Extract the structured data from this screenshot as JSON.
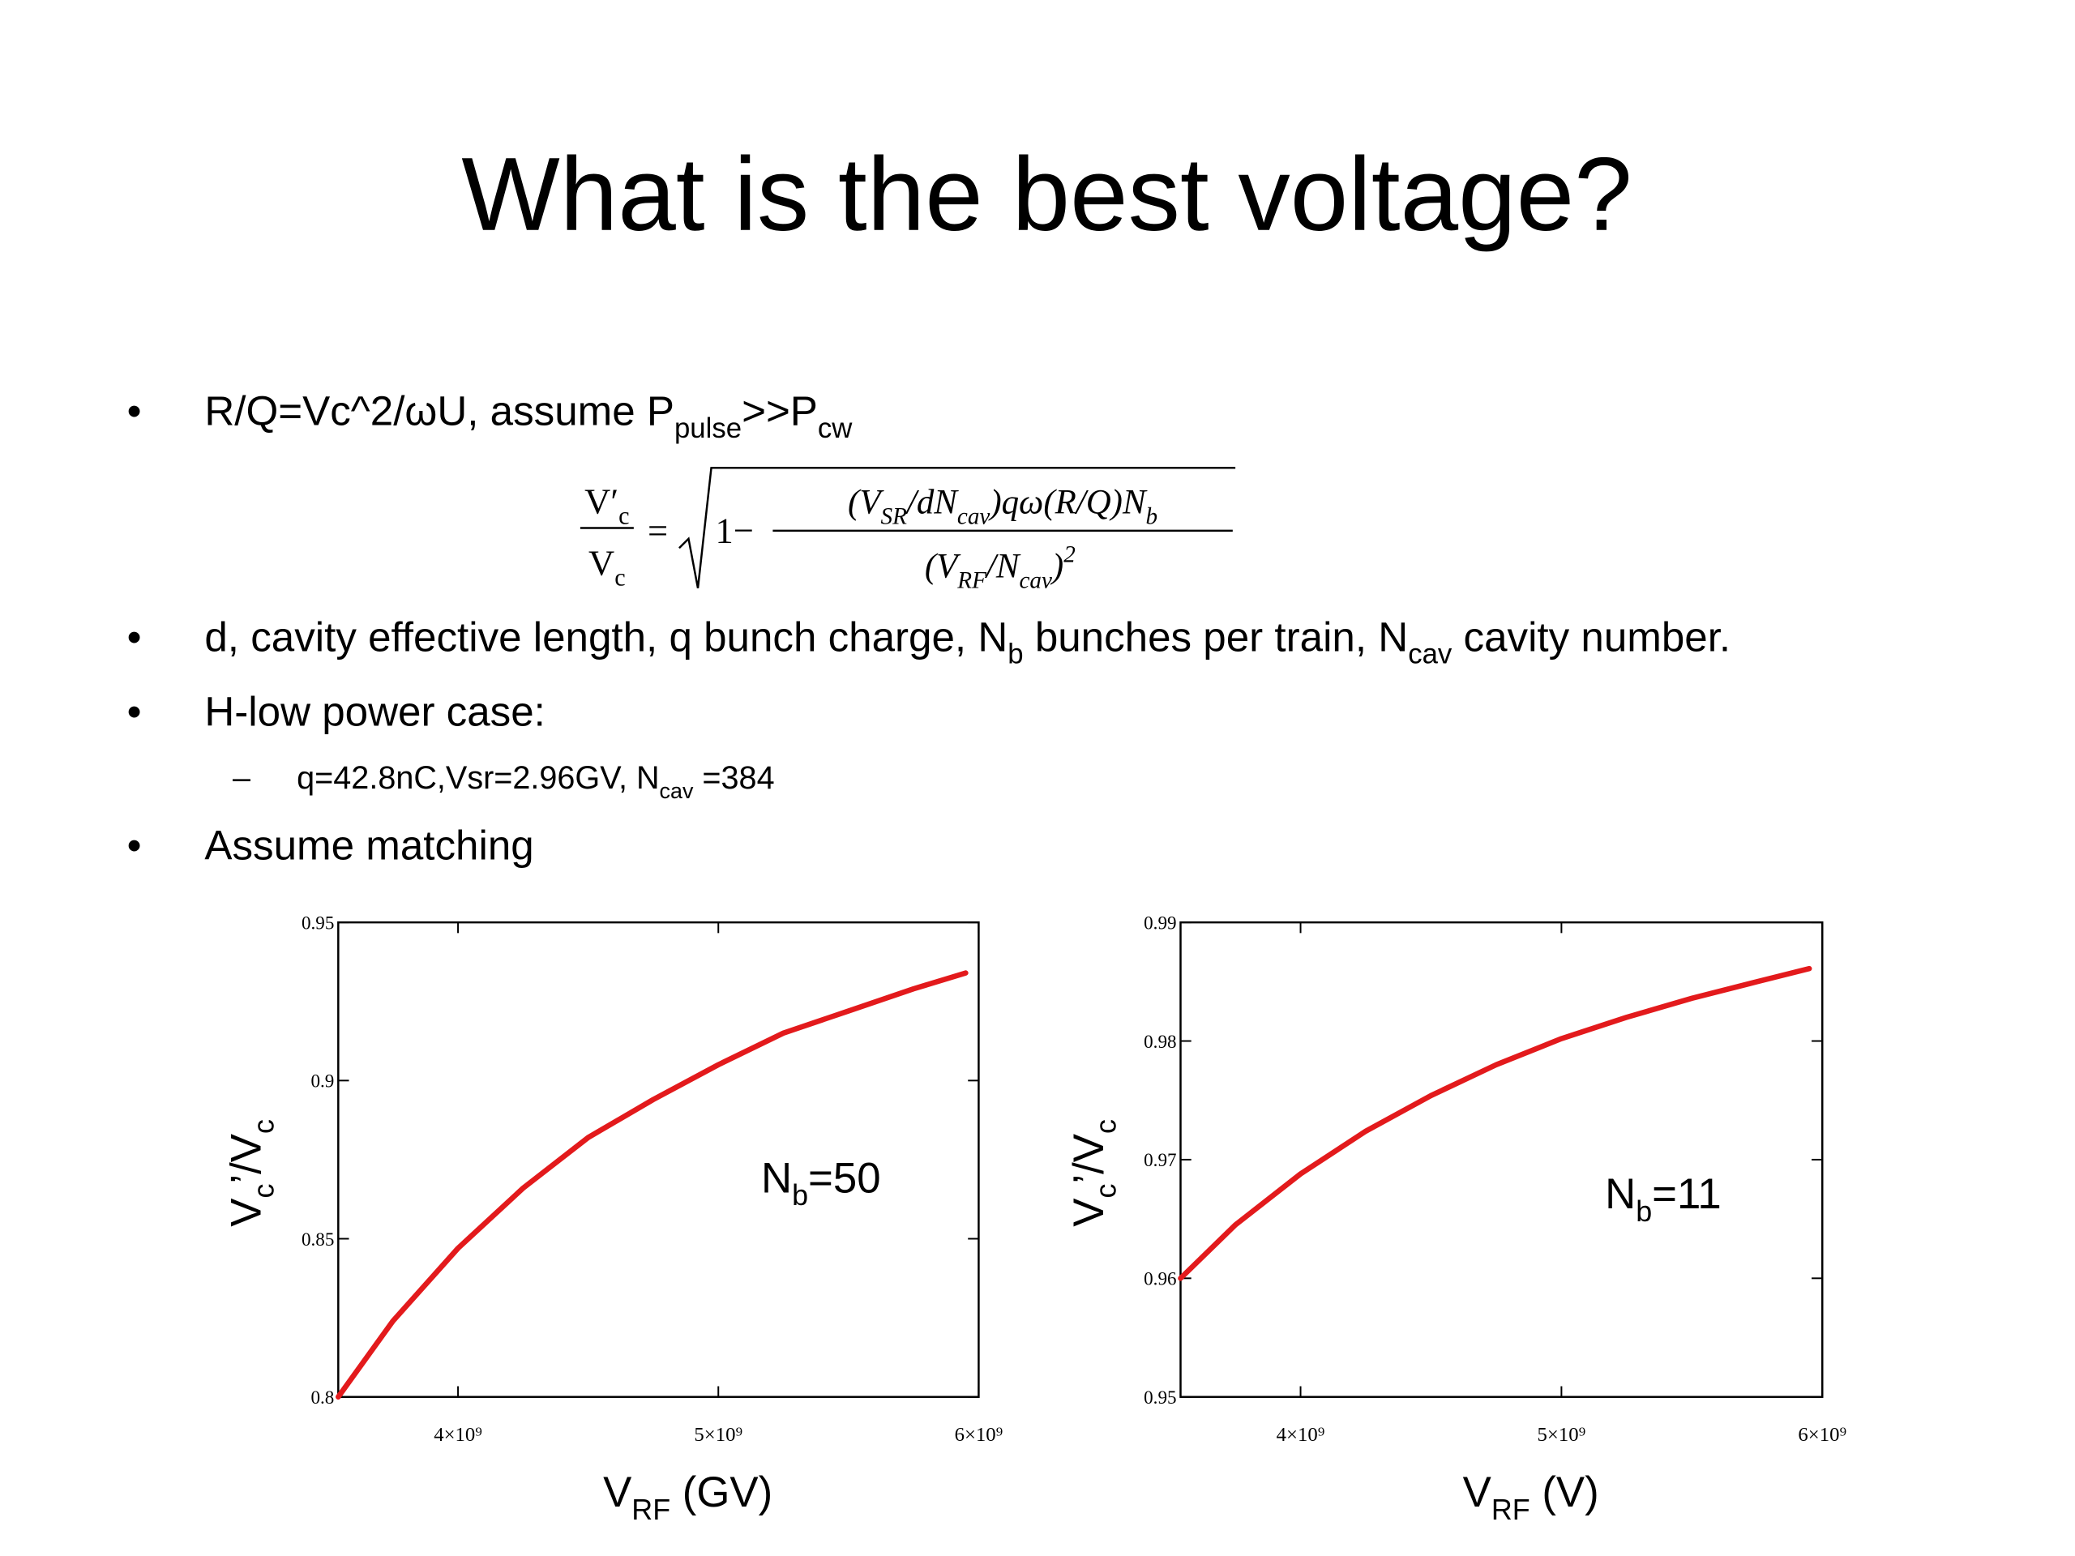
{
  "title": "What is the best voltage?",
  "items": [
    {
      "level": 1,
      "marker": "•",
      "text": [
        "R/Q=Vc^2/ωU, assume P",
        {
          "sub": "pulse"
        },
        ">>P",
        {
          "sub": "cw"
        }
      ]
    },
    {
      "level": 1,
      "marker": "•",
      "text": [
        "d, cavity effective length, q bunch charge, N",
        {
          "sub": "b"
        },
        " bunches per train, N",
        {
          "sub": "cav"
        },
        " cavity number."
      ]
    },
    {
      "level": 1,
      "marker": "•",
      "text": [
        "H-low power case:"
      ]
    },
    {
      "level": 2,
      "marker": "–",
      "text": [
        "q=42.8nC,Vsr=2.96GV, N",
        {
          "sub": "cav"
        },
        " =384"
      ]
    },
    {
      "level": 1,
      "marker": "•",
      "text": [
        "Assume matching"
      ]
    }
  ],
  "equation": {
    "lhs_numerator": [
      "V′",
      {
        "sub": "c"
      }
    ],
    "lhs_denominator": [
      "V",
      {
        "sub": "c"
      }
    ],
    "equals": "=",
    "one_minus": "1−",
    "numerator": [
      "(V",
      {
        "sub": "SR"
      },
      "/dN",
      {
        "sub": "cav"
      },
      ")qω(R/Q)N",
      {
        "sub": "b"
      }
    ],
    "denominator": [
      "(V",
      {
        "sub": "RF"
      },
      "/N",
      {
        "sub": "cav"
      },
      ")",
      {
        "sup": "2"
      }
    ]
  },
  "chart_data": [
    {
      "type": "line",
      "x_label": [
        "V",
        {
          "sub": "RF"
        },
        " (GV)"
      ],
      "y_label": [
        "V",
        {
          "sub": "c"
        },
        "’/V",
        {
          "sub": "c"
        }
      ],
      "annotation": [
        "N",
        {
          "sub": "b"
        },
        "=50"
      ],
      "x": [
        3540000000,
        3750000000,
        4000000000,
        4250000000,
        4500000000,
        4750000000,
        5000000000,
        5250000000,
        5500000000,
        5750000000,
        5950000000
      ],
      "values": [
        0.8,
        0.824,
        0.847,
        0.866,
        0.882,
        0.894,
        0.905,
        0.915,
        0.922,
        0.929,
        0.934
      ],
      "color": "#e31a1c",
      "xlim": [
        3540000000,
        6000000000
      ],
      "ylim": [
        0.8,
        0.95
      ],
      "xticks": [
        {
          "value": 4000000000,
          "label": "4×10⁹"
        },
        {
          "value": 5000000000,
          "label": "5×10⁹"
        },
        {
          "value": 6000000000,
          "label": "6×10⁹"
        }
      ],
      "yticks": [
        0.8,
        0.85,
        0.9,
        0.95
      ]
    },
    {
      "type": "line",
      "x_label": [
        "V",
        {
          "sub": "RF"
        },
        " (V)"
      ],
      "y_label": [
        "V",
        {
          "sub": "c"
        },
        "’/V",
        {
          "sub": "c"
        }
      ],
      "annotation": [
        "N",
        {
          "sub": "b"
        },
        "=11"
      ],
      "x": [
        3540000000,
        3750000000,
        4000000000,
        4250000000,
        4500000000,
        4750000000,
        5000000000,
        5250000000,
        5500000000,
        5750000000,
        5950000000
      ],
      "values": [
        0.96,
        0.9645,
        0.9688,
        0.9724,
        0.9754,
        0.978,
        0.9802,
        0.982,
        0.9836,
        0.985,
        0.9861
      ],
      "color": "#e31a1c",
      "xlim": [
        3540000000,
        6000000000
      ],
      "ylim": [
        0.95,
        0.99
      ],
      "xticks": [
        {
          "value": 4000000000,
          "label": "4×10⁹"
        },
        {
          "value": 5000000000,
          "label": "5×10⁹"
        },
        {
          "value": 6000000000,
          "label": "6×10⁹"
        }
      ],
      "yticks": [
        0.95,
        0.96,
        0.97,
        0.98,
        0.99
      ]
    }
  ]
}
